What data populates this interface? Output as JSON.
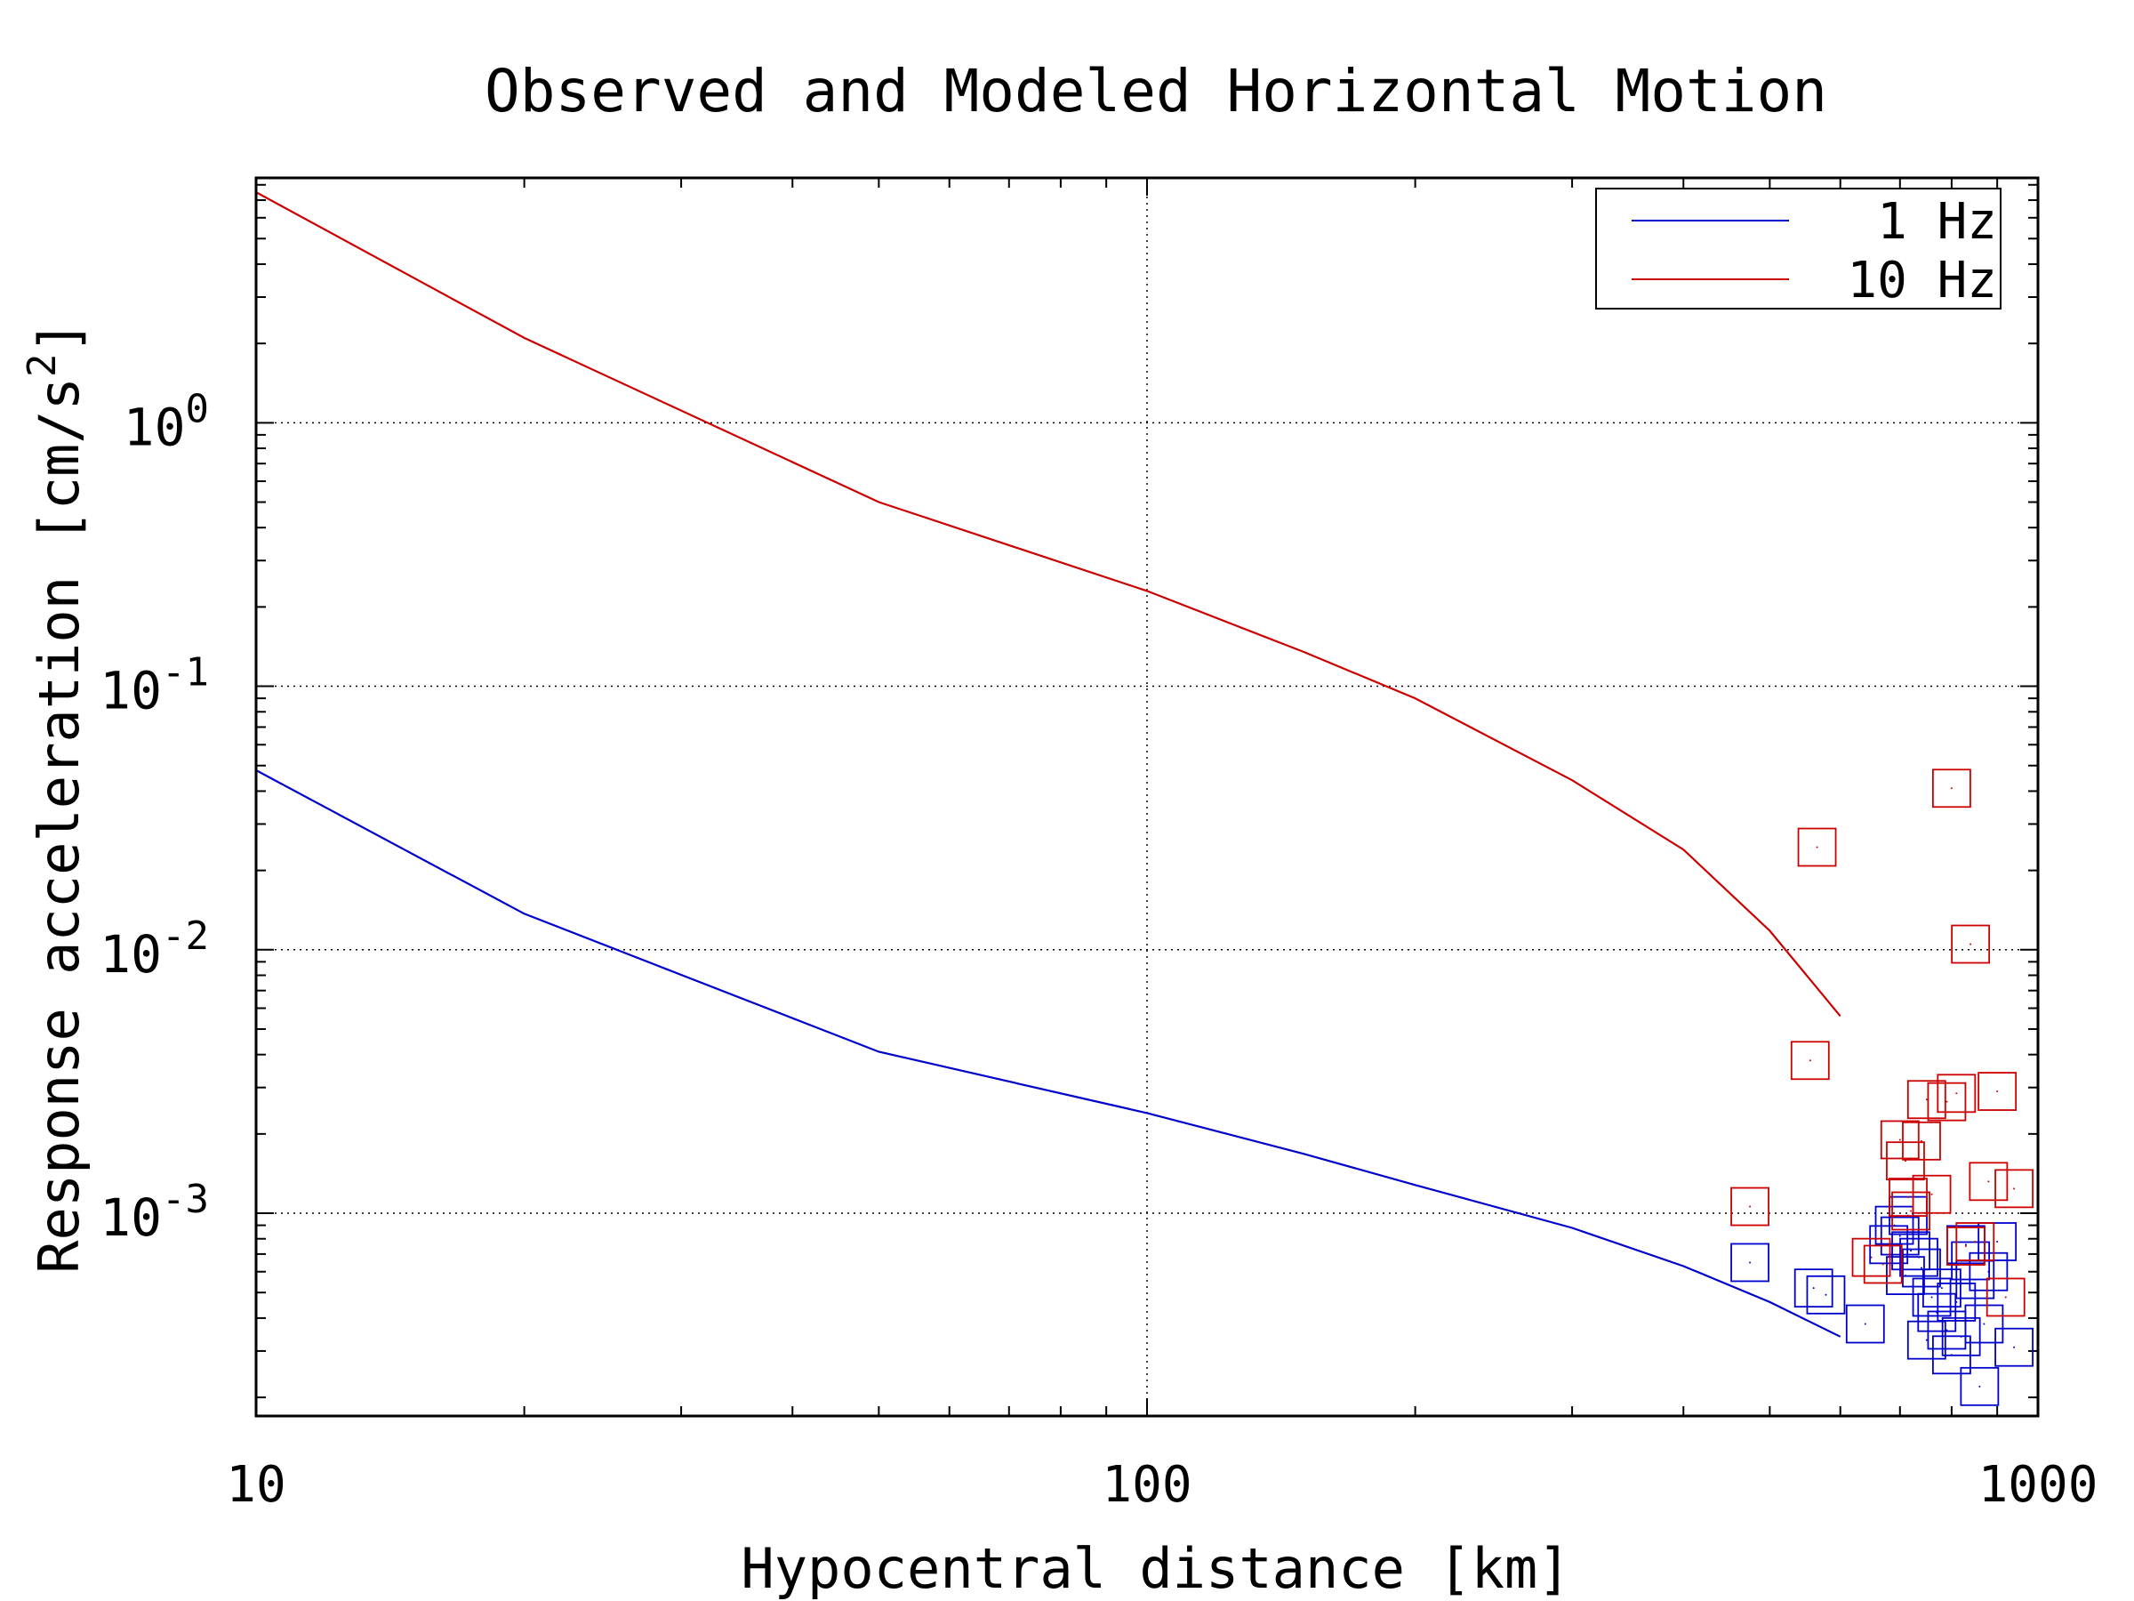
{
  "chart_data": {
    "type": "line",
    "title": "Observed and Modeled Horizontal Motion",
    "xlabel": "Hypocentral distance [km]",
    "ylabel": "Response acceleration [cm/s",
    "ylabel_sup": "2",
    "ylabel_end": "]",
    "x_scale": "log",
    "y_scale": "log",
    "xlim": [
      10,
      1000
    ],
    "ylim": [
      0.00017,
      8.5
    ],
    "x_ticks": [
      {
        "value": 10,
        "label": "10"
      },
      {
        "value": 100,
        "label": "100"
      },
      {
        "value": 1000,
        "label": "1000"
      }
    ],
    "y_ticks": [
      {
        "value": 1,
        "base": "10",
        "exp": "0"
      },
      {
        "value": 0.1,
        "base": "10",
        "exp": "-1"
      },
      {
        "value": 0.01,
        "base": "10",
        "exp": "-2"
      },
      {
        "value": 0.001,
        "base": "10",
        "exp": "-3"
      }
    ],
    "grid": true,
    "legend_position": "top-right",
    "series": [
      {
        "name": "1 Hz",
        "color": "#0000cc",
        "model_x": [
          10,
          20,
          50,
          100,
          150,
          200,
          300,
          400,
          500,
          600
        ],
        "model_y": [
          0.048,
          0.0137,
          0.0041,
          0.0024,
          0.00168,
          0.00128,
          0.00088,
          0.00063,
          0.00046,
          0.00034
        ],
        "observed_x": [
          475,
          560,
          578,
          640,
          680,
          690,
          700,
          710,
          715,
          720,
          735,
          740,
          750,
          760,
          770,
          780,
          790,
          800,
          810,
          820,
          830,
          840,
          850,
          860,
          870,
          880,
          900,
          940
        ],
        "observed_y": [
          0.00065,
          0.00052,
          0.00049,
          0.00038,
          0.00076,
          0.0009,
          0.00082,
          0.00058,
          0.00098,
          0.00072,
          0.00068,
          0.00062,
          0.00033,
          0.00048,
          0.00042,
          0.00052,
          0.00036,
          0.00029,
          0.00046,
          0.00034,
          0.00076,
          0.00066,
          0.00056,
          0.00022,
          0.00038,
          0.0006,
          0.00078,
          0.00031
        ]
      },
      {
        "name": "10 Hz",
        "color": "#cc0000",
        "model_x": [
          10,
          20,
          50,
          100,
          150,
          200,
          300,
          400,
          500,
          600
        ],
        "model_y": [
          7.5,
          2.1,
          0.5,
          0.23,
          0.135,
          0.09,
          0.044,
          0.024,
          0.0118,
          0.0056
        ],
        "observed_x": [
          475,
          555,
          565,
          650,
          670,
          700,
          710,
          715,
          720,
          740,
          750,
          760,
          790,
          800,
          810,
          830,
          840,
          850,
          880,
          900,
          920,
          940
        ],
        "observed_y": [
          0.00106,
          0.0038,
          0.0245,
          0.00068,
          0.00064,
          0.0019,
          0.00158,
          0.00115,
          0.00102,
          0.00188,
          0.0027,
          0.00118,
          0.00265,
          0.041,
          0.00285,
          0.00075,
          0.0105,
          0.00078,
          0.00132,
          0.0029,
          0.00048,
          0.00124
        ]
      }
    ]
  }
}
